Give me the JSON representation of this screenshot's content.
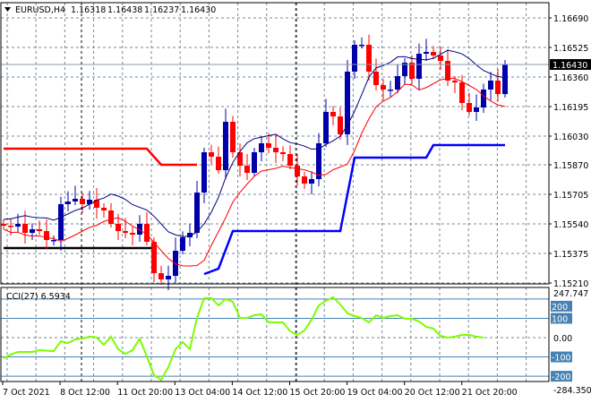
{
  "chart_data": {
    "type": "candlestick",
    "symbol_label": "EURUSD,H4",
    "ohlc_label": [
      "1.16318",
      "1.16438",
      "1.16237",
      "1.16430"
    ],
    "current_price": "1.16430",
    "price_ticks": [
      "1.16690",
      "1.16525",
      "1.16360",
      "1.16195",
      "1.16030",
      "1.15870",
      "1.15705",
      "1.15540",
      "1.15375",
      "1.15210"
    ],
    "ylim": [
      1.1521,
      1.1669
    ],
    "closes_est": [
      1.1553,
      1.15525,
      1.1554,
      1.1549,
      1.1551,
      1.155,
      1.1545,
      1.1545,
      1.1565,
      1.15665,
      1.1568,
      1.1565,
      1.15675,
      1.1563,
      1.15615,
      1.1554,
      1.155,
      1.1549,
      1.1548,
      1.1554,
      1.1544,
      1.15265,
      1.1523,
      1.1525,
      1.1539,
      1.15465,
      1.1549,
      1.15715,
      1.1594,
      1.15915,
      1.1584,
      1.1611,
      1.1594,
      1.15865,
      1.15825,
      1.1594,
      1.1599,
      1.15965,
      1.1594,
      1.1593,
      1.15865,
      1.15805,
      1.15765,
      1.1579,
      1.1599,
      1.16165,
      1.1614,
      1.1604,
      1.1639,
      1.1654,
      1.1654,
      1.1639,
      1.16315,
      1.1629,
      1.1629,
      1.16365,
      1.1644,
      1.1635,
      1.1649,
      1.165,
      1.1648,
      1.1645,
      1.1634,
      1.1633,
      1.16215,
      1.16165,
      1.1619,
      1.1629,
      1.1634,
      1.16265,
      1.1643
    ],
    "red_channel_line": [
      [
        0,
        1.1596
      ],
      [
        20,
        1.1596
      ],
      [
        22,
        1.1587
      ],
      [
        27,
        1.1587
      ]
    ],
    "black_line": [
      [
        0,
        1.15405
      ],
      [
        21,
        1.15405
      ]
    ],
    "blue_stop_line": [
      [
        28,
        1.1526
      ],
      [
        30,
        1.1529
      ],
      [
        32,
        1.155
      ],
      [
        47,
        1.155
      ],
      [
        49,
        1.1591
      ],
      [
        59,
        1.1591
      ],
      [
        60,
        1.1598
      ],
      [
        70,
        1.1598
      ]
    ],
    "cci": {
      "label": "CCI(27) 6.5934",
      "max_label": "247.747",
      "min_label": "-284.3504",
      "levels": [
        "200",
        "100",
        "0.00",
        "-100",
        "-200"
      ],
      "level_values": [
        200,
        100,
        0,
        -100,
        -200
      ],
      "ylim": [
        -284.35,
        247.75
      ],
      "values": [
        [
          0,
          -107
        ],
        [
          1,
          -88
        ],
        [
          2,
          -74
        ],
        [
          4,
          -74
        ],
        [
          5,
          -65
        ],
        [
          7,
          -70
        ],
        [
          8,
          -19
        ],
        [
          9,
          -28
        ],
        [
          10,
          -9
        ],
        [
          11,
          -5
        ],
        [
          12,
          5
        ],
        [
          13,
          0
        ],
        [
          14,
          -37
        ],
        [
          15,
          5
        ],
        [
          16,
          -60
        ],
        [
          17,
          -84
        ],
        [
          18,
          -65
        ],
        [
          19,
          -5
        ],
        [
          20,
          -98
        ],
        [
          21,
          -195
        ],
        [
          22,
          -219
        ],
        [
          23,
          -153
        ],
        [
          24,
          -60
        ],
        [
          25,
          -23
        ],
        [
          26,
          -60
        ],
        [
          27,
          102
        ],
        [
          28,
          205
        ],
        [
          29,
          205
        ],
        [
          30,
          167
        ],
        [
          31,
          200
        ],
        [
          32,
          186
        ],
        [
          33,
          102
        ],
        [
          34,
          102
        ],
        [
          35,
          116
        ],
        [
          36,
          121
        ],
        [
          37,
          79
        ],
        [
          39,
          79
        ],
        [
          40,
          33
        ],
        [
          41,
          14
        ],
        [
          42,
          37
        ],
        [
          43,
          93
        ],
        [
          44,
          167
        ],
        [
          45,
          191
        ],
        [
          46,
          209
        ],
        [
          47,
          172
        ],
        [
          48,
          126
        ],
        [
          49,
          112
        ],
        [
          50,
          102
        ],
        [
          51,
          79
        ],
        [
          52,
          116
        ],
        [
          53,
          102
        ],
        [
          54,
          112
        ],
        [
          55,
          116
        ],
        [
          56,
          98
        ],
        [
          57,
          98
        ],
        [
          58,
          84
        ],
        [
          59,
          56
        ],
        [
          60,
          47
        ],
        [
          61,
          9
        ],
        [
          62,
          0
        ],
        [
          63,
          5
        ],
        [
          64,
          14
        ],
        [
          65,
          14
        ],
        [
          66,
          5
        ],
        [
          67,
          0
        ]
      ]
    },
    "time_labels": [
      "7 Oct 2021",
      "8 Oct 12:00",
      "11 Oct 20:00",
      "13 Oct 04:00",
      "14 Oct 12:00",
      "15 Oct 20:00",
      "19 Oct 04:00",
      "20 Oct 12:00",
      "21 Oct 20:00"
    ],
    "colors": {
      "bull": "#0000aa",
      "bear": "#ff0000",
      "ma_upper": "#000080",
      "ma_lower": "#ff0000",
      "stop": "#0000ff",
      "cci": "#7cfc00",
      "level": "#4682b4",
      "grid": "#778899"
    }
  }
}
